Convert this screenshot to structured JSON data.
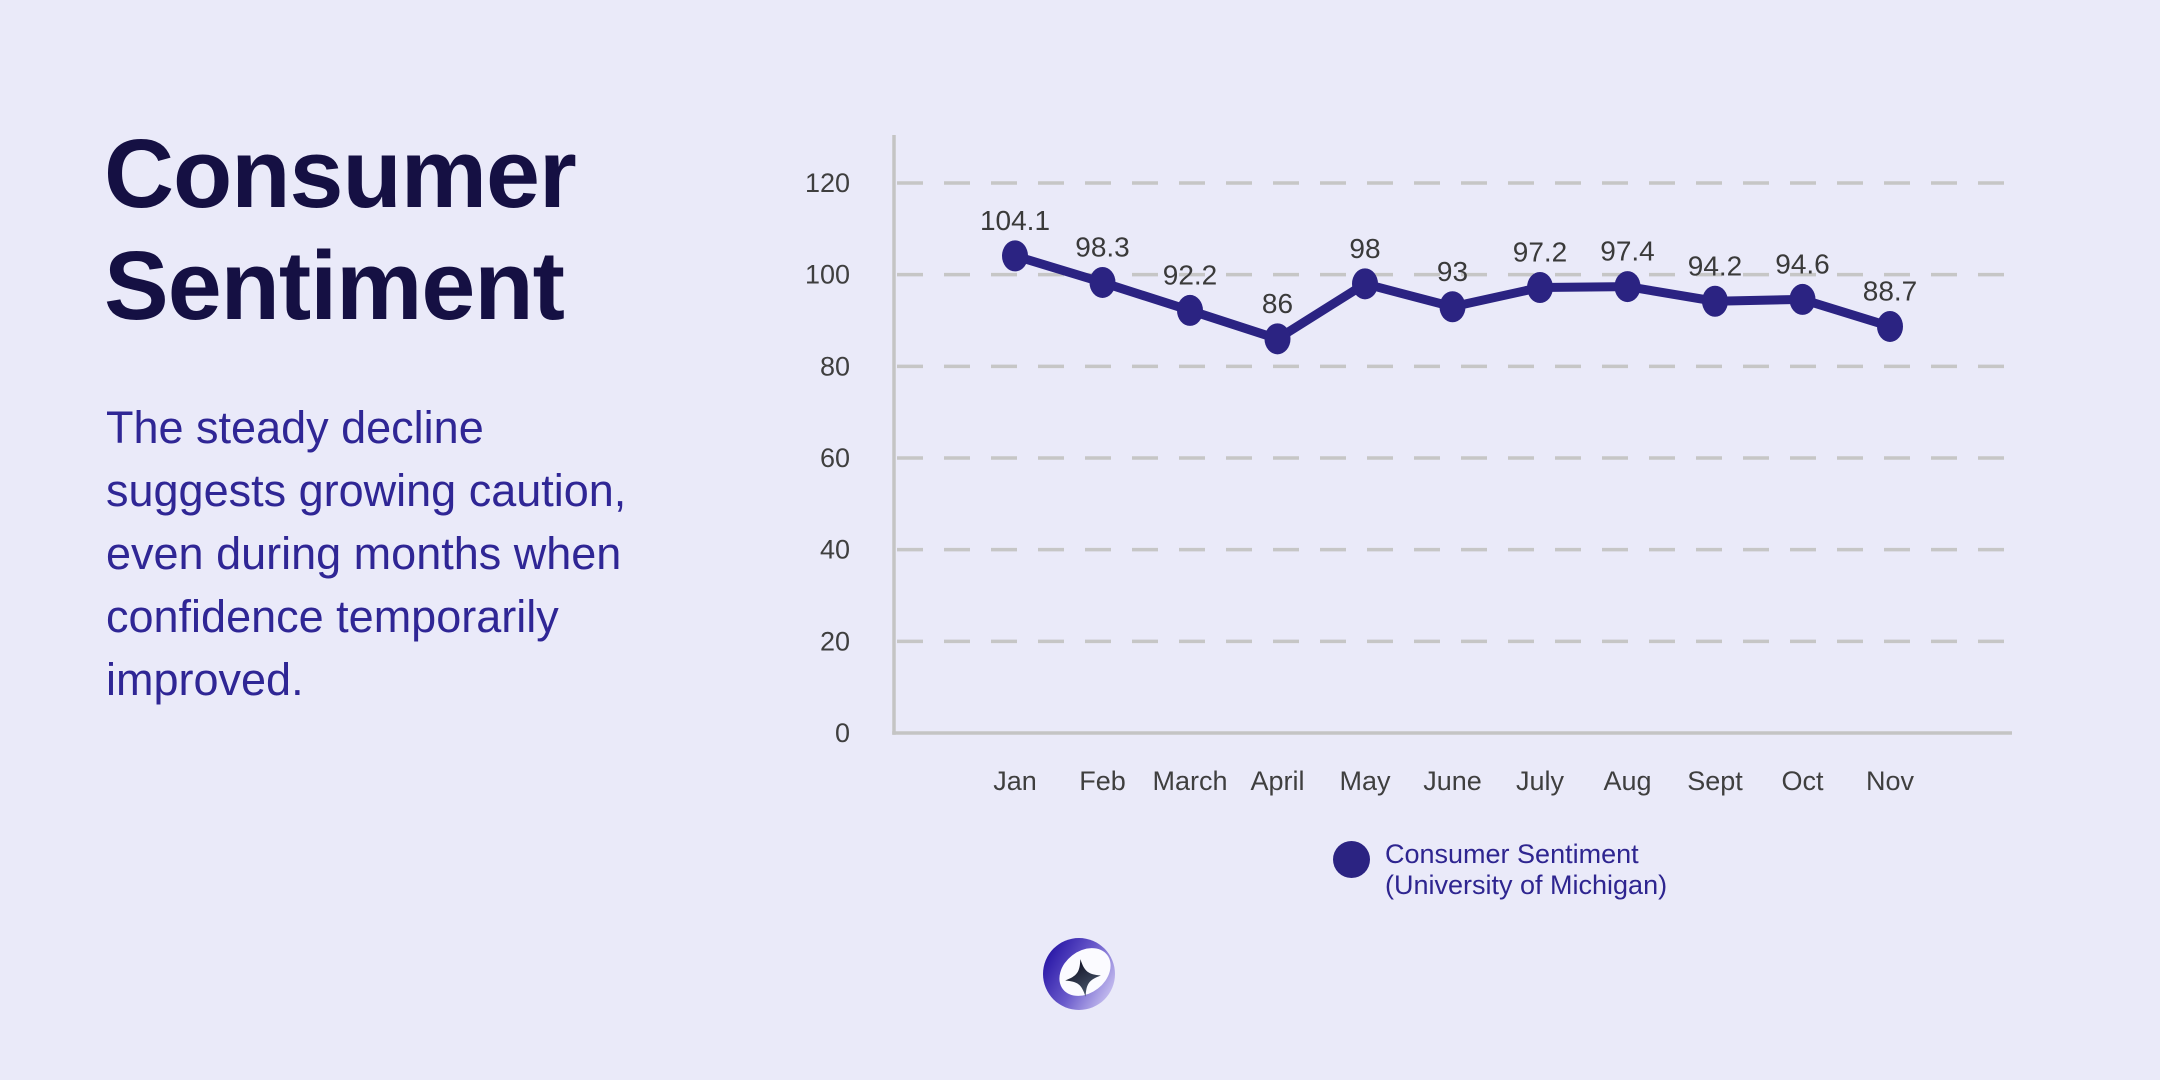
{
  "page": {
    "background_color": "#eaeaf9"
  },
  "header": {
    "title": "Consumer Sentiment",
    "subtitle": "The steady decline suggests growing caution, even during months when confidence temporarily improved."
  },
  "legend": {
    "line1": "Consumer Sentiment",
    "line2": "(University of Michigan)",
    "marker_color": "#2b2382",
    "text_color": "#2e2590"
  },
  "logo": {
    "icon": "sparkle-ring-logo-icon"
  },
  "chart_data": {
    "type": "line",
    "title": "",
    "xlabel": "",
    "ylabel": "",
    "categories": [
      "Jan",
      "Feb",
      "March",
      "April",
      "May",
      "June",
      "July",
      "Aug",
      "Sept",
      "Oct",
      "Nov"
    ],
    "series": [
      {
        "name": "Consumer Sentiment (University of Michigan)",
        "color": "#2b2382",
        "values": [
          104.1,
          98.3,
          92.2,
          86,
          98,
          93,
          97.2,
          97.4,
          94.2,
          94.6,
          88.7
        ]
      }
    ],
    "ylim": [
      0,
      130
    ],
    "yticks": [
      0,
      20,
      40,
      60,
      80,
      100,
      120
    ],
    "grid": "horizontal-dashed",
    "gridline_color": "#c6c6c6",
    "axis_color": "#c4c4c4",
    "tick_label_color": "#3f3f3f",
    "data_label_color": "#3a3a3a",
    "legend_position": "bottom",
    "data_labels_visible": true
  }
}
